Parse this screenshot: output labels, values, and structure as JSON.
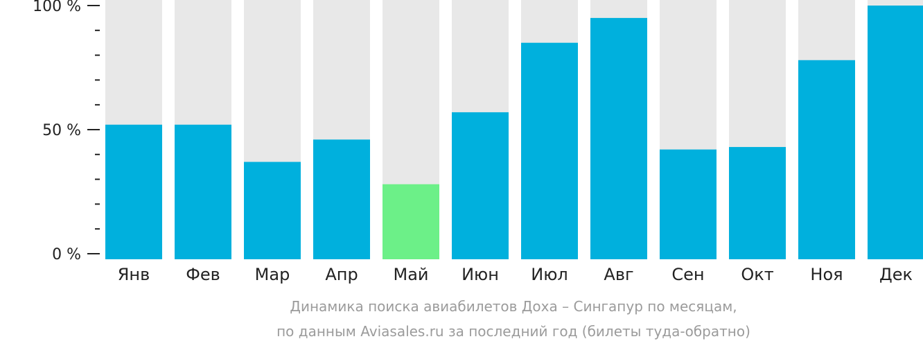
{
  "chart_data": {
    "type": "bar",
    "categories": [
      "Янв",
      "Фев",
      "Мар",
      "Апр",
      "Май",
      "Июн",
      "Июл",
      "Авг",
      "Сен",
      "Окт",
      "Ноя",
      "Дек"
    ],
    "values": [
      52,
      52,
      37,
      46,
      28,
      57,
      85,
      95,
      42,
      43,
      78,
      100
    ],
    "ylim": [
      0,
      100
    ],
    "y_ticks": [
      {
        "value": 100,
        "label": "100 %"
      },
      {
        "value": 50,
        "label": "50 %"
      },
      {
        "value": 0,
        "label": "0 %"
      }
    ],
    "y_minor_ticks": [
      10,
      20,
      30,
      40,
      60,
      70,
      80,
      90
    ],
    "highlight_category": "Май",
    "colors": {
      "bar": "#00b0dd",
      "highlight": "#6cf088",
      "background_bar": "#e8e8e8",
      "axis": "#222222"
    },
    "caption": [
      "Динамика поиска авиабилетов Доха – Сингапур по месяцам,",
      "по данным Aviasales.ru за последний год (билеты туда-обратно)"
    ]
  }
}
